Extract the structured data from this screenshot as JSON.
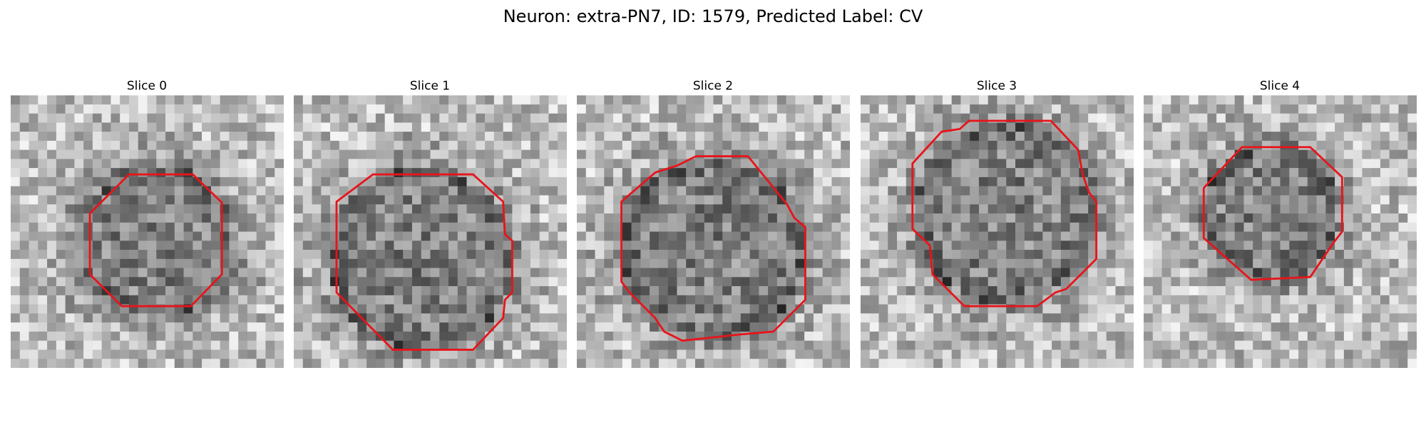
{
  "header": {
    "title": "Neuron: extra-PN7, ID: 1579, Predicted Label: CV"
  },
  "panels": [
    {
      "title": "Slice 0"
    },
    {
      "title": "Slice 1"
    },
    {
      "title": "Slice 2"
    },
    {
      "title": "Slice 3"
    },
    {
      "title": "Slice 4"
    }
  ]
}
